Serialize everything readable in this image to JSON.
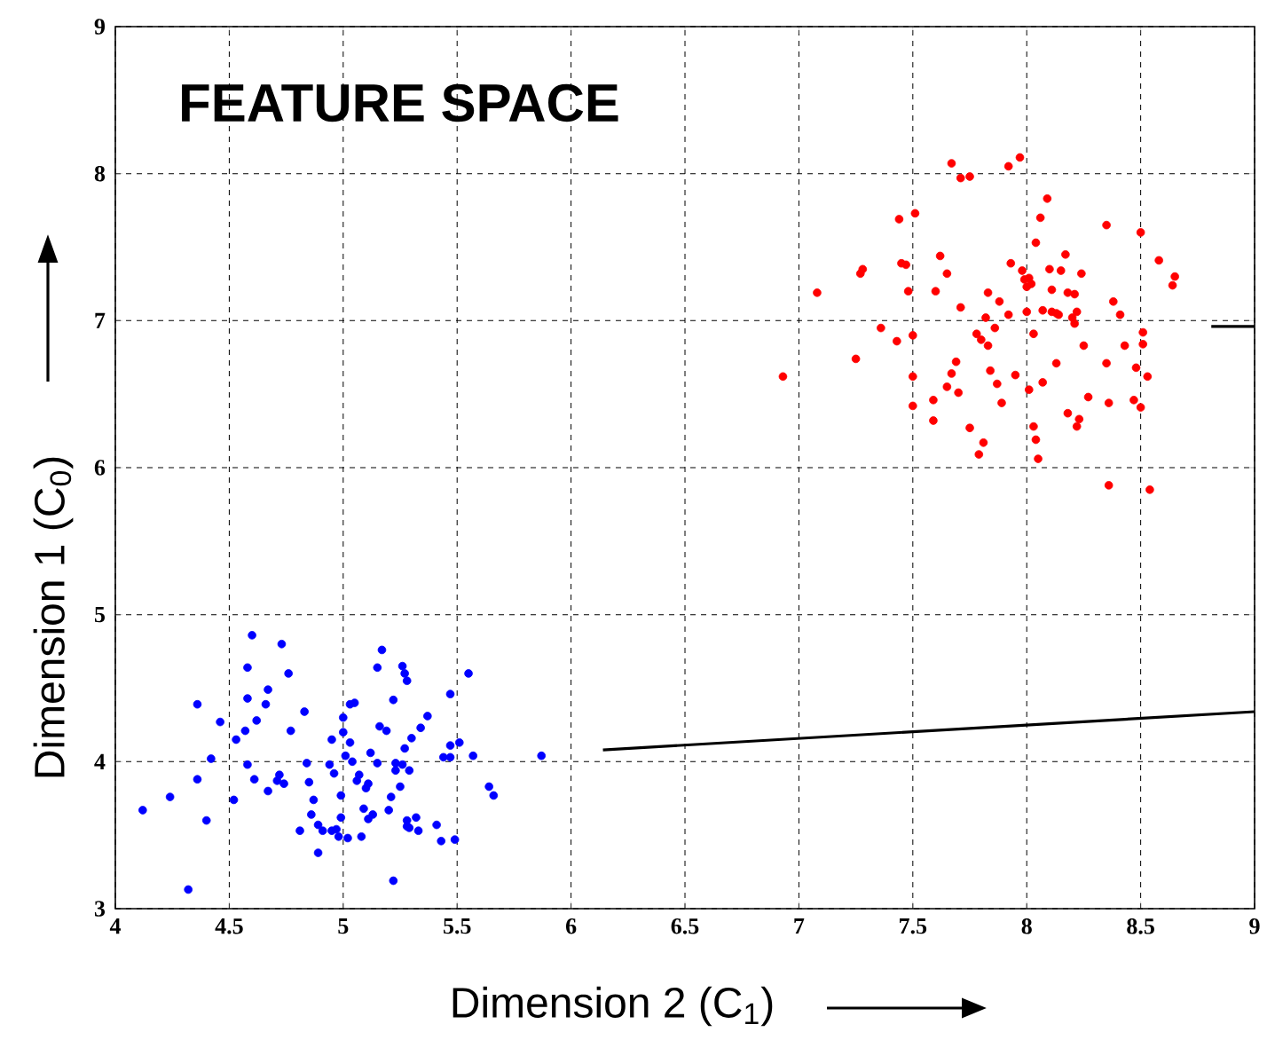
{
  "chart_data": {
    "type": "scatter",
    "title": "FEATURE SPACE",
    "xlabel": "Dimension 2 (C$_{1}$)",
    "ylabel": "Dimension 1 (C$_{0}$)",
    "xlim": [
      4,
      9
    ],
    "ylim": [
      3,
      9
    ],
    "xticks": [
      4,
      4.5,
      5,
      5.5,
      6,
      6.5,
      7,
      7.5,
      8,
      8.5,
      9
    ],
    "yticks": [
      3,
      4,
      5,
      6,
      7,
      8,
      9
    ],
    "grid": true,
    "marker": "circle",
    "series": [
      {
        "color": "#0000ff",
        "x": [
          4.12,
          4.24,
          4.32,
          4.36,
          4.36,
          4.4,
          4.42,
          4.46,
          4.52,
          4.53,
          4.57,
          4.58,
          4.58,
          4.58,
          4.6,
          4.61,
          4.62,
          4.66,
          4.67,
          4.67,
          4.71,
          4.72,
          4.74,
          4.73,
          4.76,
          4.77,
          4.81,
          4.83,
          4.84,
          4.85,
          4.87,
          4.86,
          4.89,
          4.89,
          4.91,
          4.94,
          4.95,
          4.95,
          4.96,
          4.97,
          4.98,
          4.99,
          4.99,
          5.0,
          5.0,
          5.02,
          5.03,
          5.01,
          5.03,
          5.04,
          5.05,
          5.06,
          5.07,
          5.08,
          5.09,
          5.1,
          5.11,
          5.11,
          5.12,
          5.13,
          5.15,
          5.15,
          5.16,
          5.17,
          5.19,
          5.2,
          5.21,
          5.22,
          5.22,
          5.23,
          5.23,
          5.25,
          5.26,
          5.27,
          5.26,
          5.27,
          5.28,
          5.28,
          5.28,
          5.29,
          5.3,
          5.29,
          5.32,
          5.33,
          5.34,
          5.37,
          5.41,
          5.43,
          5.44,
          5.47,
          5.47,
          5.47,
          5.49,
          5.51,
          5.55,
          5.57,
          5.64,
          5.66,
          5.87
        ],
        "values": [
          3.67,
          3.76,
          3.13,
          4.39,
          3.88,
          3.6,
          4.02,
          4.27,
          3.74,
          4.15,
          4.21,
          4.43,
          3.98,
          4.64,
          4.86,
          3.88,
          4.28,
          4.39,
          4.49,
          3.8,
          3.87,
          3.91,
          3.85,
          4.8,
          4.6,
          4.21,
          3.53,
          4.34,
          3.99,
          3.86,
          3.74,
          3.64,
          3.57,
          3.38,
          3.53,
          3.98,
          3.53,
          4.15,
          3.92,
          3.54,
          3.49,
          3.77,
          3.62,
          4.3,
          4.2,
          3.48,
          4.39,
          4.04,
          4.13,
          4.0,
          4.4,
          3.87,
          3.91,
          3.49,
          3.68,
          3.82,
          3.61,
          3.85,
          4.06,
          3.64,
          4.64,
          3.99,
          4.24,
          4.76,
          4.21,
          3.67,
          3.76,
          3.19,
          4.42,
          3.94,
          3.99,
          3.83,
          3.98,
          4.09,
          4.65,
          4.6,
          4.55,
          3.56,
          3.6,
          3.94,
          4.16,
          3.55,
          3.62,
          3.53,
          4.23,
          4.31,
          3.57,
          3.46,
          4.03,
          4.03,
          4.11,
          4.46,
          3.47,
          4.13,
          4.6,
          4.04,
          3.83,
          3.77,
          4.04
        ]
      },
      {
        "color": "#ff0000",
        "x": [
          6.93,
          7.08,
          7.25,
          7.27,
          7.28,
          7.36,
          7.43,
          7.44,
          7.45,
          7.47,
          7.48,
          7.5,
          7.5,
          7.5,
          7.51,
          7.59,
          7.59,
          7.6,
          7.62,
          7.65,
          7.65,
          7.67,
          7.67,
          7.69,
          7.7,
          7.71,
          7.71,
          7.75,
          7.75,
          7.78,
          7.79,
          7.8,
          7.81,
          7.82,
          7.83,
          7.83,
          7.84,
          7.86,
          7.87,
          7.88,
          7.89,
          7.92,
          7.92,
          7.93,
          7.95,
          7.97,
          7.98,
          7.99,
          8.0,
          8.0,
          8.01,
          8.01,
          8.02,
          8.03,
          8.03,
          8.04,
          8.04,
          8.05,
          8.06,
          8.07,
          8.07,
          8.09,
          8.1,
          8.11,
          8.11,
          8.13,
          8.13,
          8.14,
          8.15,
          8.17,
          8.18,
          8.18,
          8.2,
          8.21,
          8.21,
          8.22,
          8.22,
          8.23,
          8.24,
          8.25,
          8.27,
          8.35,
          8.35,
          8.36,
          8.36,
          8.38,
          8.41,
          8.43,
          8.47,
          8.48,
          8.5,
          8.5,
          8.51,
          8.51,
          8.53,
          8.54,
          8.58,
          8.64,
          8.65
        ],
        "values": [
          6.62,
          7.19,
          6.74,
          7.32,
          7.35,
          6.95,
          6.86,
          7.69,
          7.39,
          7.38,
          7.2,
          6.9,
          6.62,
          6.42,
          7.73,
          6.46,
          6.32,
          7.2,
          7.44,
          7.32,
          6.55,
          6.64,
          8.07,
          6.72,
          6.51,
          7.09,
          7.97,
          7.98,
          6.27,
          6.91,
          6.09,
          6.87,
          6.17,
          7.02,
          6.83,
          7.19,
          6.66,
          6.95,
          6.57,
          7.13,
          6.44,
          7.04,
          8.05,
          7.39,
          6.63,
          8.11,
          7.34,
          7.28,
          7.06,
          7.23,
          7.29,
          6.53,
          7.25,
          6.91,
          6.28,
          7.53,
          6.19,
          6.06,
          7.7,
          6.58,
          7.07,
          7.83,
          7.35,
          7.06,
          7.21,
          7.05,
          6.71,
          7.04,
          7.34,
          7.45,
          6.37,
          7.19,
          7.02,
          7.18,
          6.98,
          6.28,
          7.06,
          6.33,
          7.32,
          6.83,
          6.48,
          7.65,
          6.71,
          6.44,
          5.88,
          7.13,
          7.04,
          6.83,
          6.46,
          6.68,
          7.6,
          6.41,
          6.84,
          6.92,
          6.62,
          5.85,
          7.41,
          7.24,
          7.3
        ]
      },
      {
        "type": "line",
        "color": "#000000",
        "marker": "none",
        "x": [
          6.14,
          9.0
        ],
        "values": [
          4.08,
          4.34
        ]
      },
      {
        "type": "line",
        "color": "#000000",
        "marker": "none",
        "x": [
          8.81,
          9.0
        ],
        "values": [
          6.96,
          6.96
        ]
      }
    ]
  }
}
